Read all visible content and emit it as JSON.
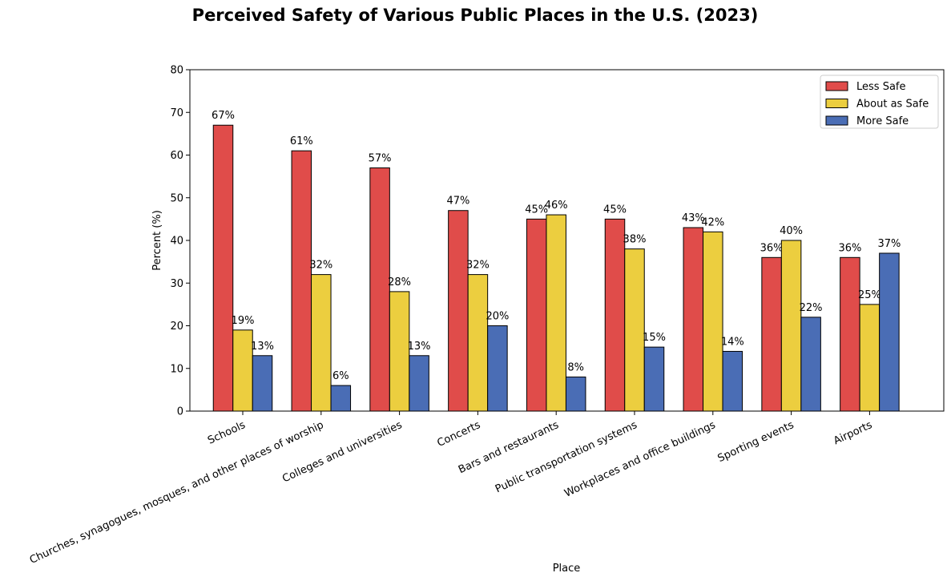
{
  "chart_data": {
    "type": "bar",
    "title": "Perceived Safety of Various Public Places in the U.S. (2023)",
    "xlabel": "Place",
    "ylabel": "Percent (%)",
    "ylim": [
      0,
      80
    ],
    "yticks": [
      0,
      10,
      20,
      30,
      40,
      50,
      60,
      70,
      80
    ],
    "categories": [
      "Schools",
      "Churches, synagogues, mosques, and other places of worship",
      "Colleges and universities",
      "Concerts",
      "Bars and restaurants",
      "Public transportation systems",
      "Workplaces and office buildings",
      "Sporting events",
      "Airports"
    ],
    "series": [
      {
        "name": "Less Safe",
        "color": "#e04c4a",
        "values": [
          67,
          61,
          57,
          47,
          45,
          45,
          43,
          36,
          36
        ],
        "labels": [
          "67%",
          "61%",
          "57%",
          "47%",
          "45%",
          "45%",
          "43%",
          "36%",
          "36%"
        ]
      },
      {
        "name": "About as Safe",
        "color": "#ecce3f",
        "values": [
          19,
          32,
          28,
          32,
          46,
          38,
          42,
          40,
          25
        ],
        "labels": [
          "19%",
          "32%",
          "28%",
          "32%",
          "46%",
          "38%",
          "42%",
          "40%",
          "25%"
        ]
      },
      {
        "name": "More Safe",
        "color": "#4a6db5",
        "values": [
          13,
          6,
          13,
          20,
          8,
          15,
          14,
          22,
          37
        ],
        "labels": [
          "13%",
          "6%",
          "13%",
          "20%",
          "8%",
          "15%",
          "14%",
          "22%",
          "37%"
        ]
      }
    ],
    "legend_position": "top-right",
    "grid": false
  }
}
